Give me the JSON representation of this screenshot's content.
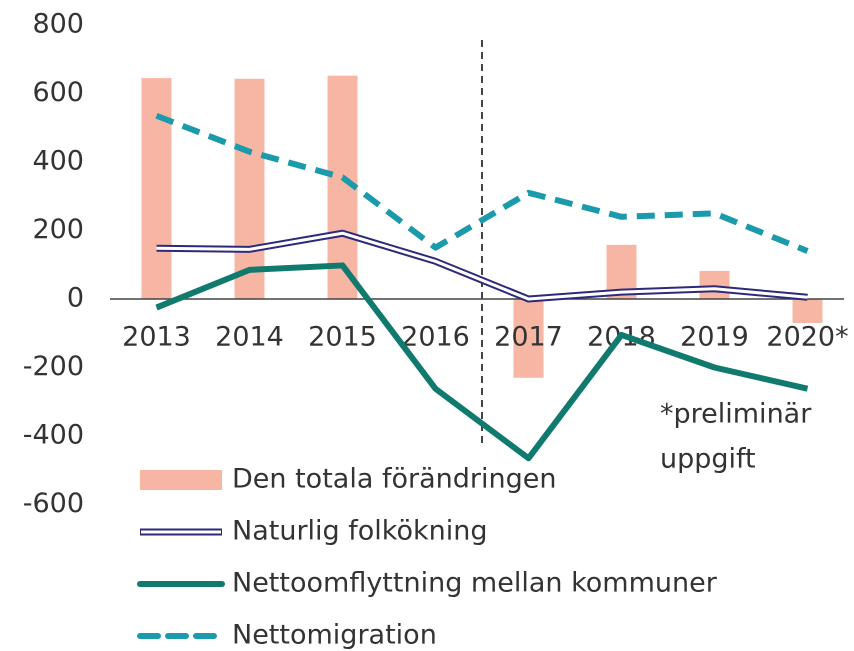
{
  "chart_data": {
    "type": "bar",
    "categories": [
      "2013",
      "2014",
      "2015",
      "2016",
      "2017",
      "2018",
      "2019",
      "2020*"
    ],
    "series": [
      {
        "name": "Den totala förändringen",
        "type": "bar",
        "color": "#f7b5a4",
        "values": [
          645,
          643,
          652,
          null,
          -230,
          158,
          82,
          -70
        ]
      },
      {
        "name": "Naturlig folkökning",
        "type": "double-line",
        "color": "#2e2a7a",
        "values": [
          148,
          145,
          192,
          110,
          0,
          20,
          30,
          5
        ]
      },
      {
        "name": "Nettoomflyttning mellan kommuner",
        "type": "line",
        "color": "#107a6e",
        "values": [
          -25,
          85,
          98,
          -262,
          -465,
          -105,
          -200,
          -262
        ]
      },
      {
        "name": "Nettomigration",
        "type": "dashed-line",
        "color": "#1a9aaa",
        "values": [
          535,
          430,
          355,
          150,
          310,
          240,
          250,
          140
        ]
      }
    ],
    "ylim": [
      -600,
      800
    ],
    "yticks": [
      -600,
      -400,
      -200,
      0,
      200,
      400,
      600,
      800
    ],
    "annotation": [
      "*preliminär",
      "uppgift"
    ]
  }
}
